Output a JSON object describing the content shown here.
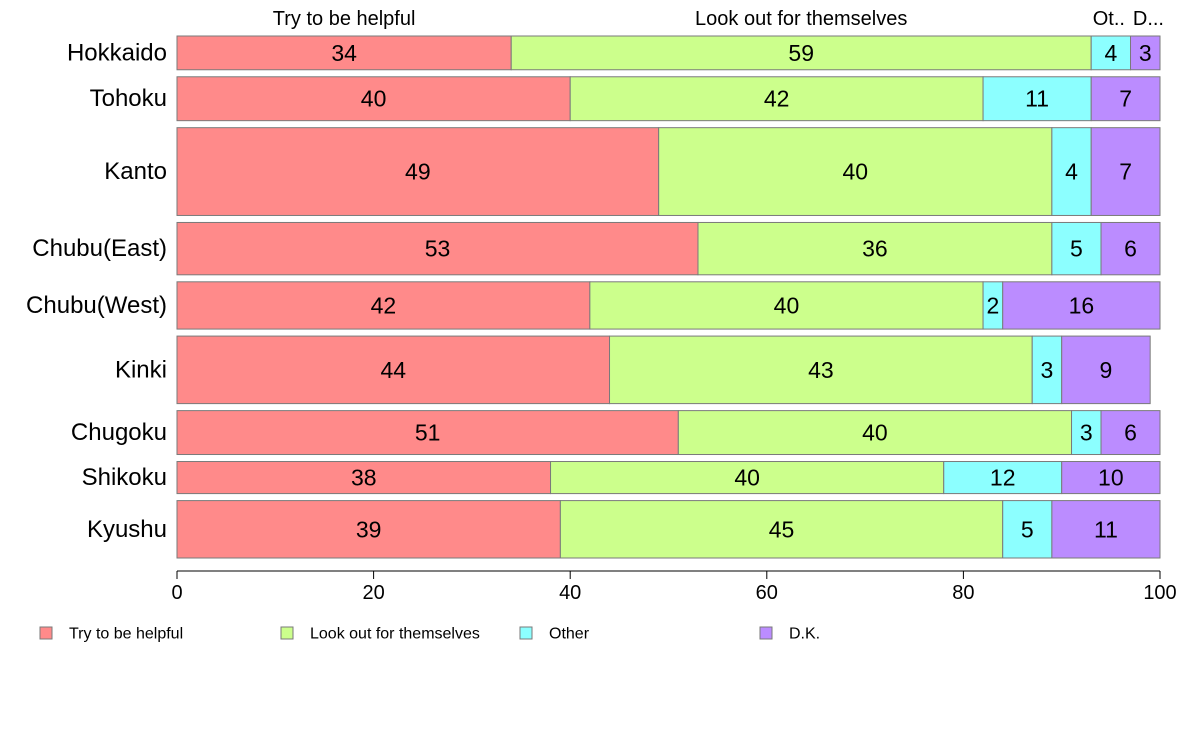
{
  "chart_data": {
    "type": "bar",
    "orientation": "horizontal",
    "stacked": true,
    "categories": [
      "Hokkaido",
      "Tohoku",
      "Kanto",
      "Chubu(East)",
      "Chubu(West)",
      "Kinki",
      "Chugoku",
      "Shikoku",
      "Kyushu"
    ],
    "bar_weights": [
      1,
      1.3,
      2.6,
      1.55,
      1.4,
      2.0,
      1.3,
      0.95,
      1.7
    ],
    "series": [
      {
        "name": "Try to be helpful",
        "color": "#FF8A8A",
        "values": [
          34,
          40,
          49,
          53,
          42,
          44,
          51,
          38,
          39
        ]
      },
      {
        "name": "Look out for themselves",
        "color": "#CCFF8C",
        "values": [
          59,
          42,
          40,
          36,
          40,
          43,
          40,
          40,
          45
        ]
      },
      {
        "name": "Other",
        "color": "#8CFFFF",
        "values": [
          4,
          11,
          4,
          5,
          2,
          3,
          3,
          12,
          5
        ]
      },
      {
        "name": "D.K.",
        "color": "#BB8CFF",
        "values": [
          3,
          7,
          7,
          6,
          16,
          9,
          6,
          10,
          11
        ]
      }
    ],
    "top_labels": [
      "Try to be helpful",
      "Look out for themselves",
      "Ot..",
      "D..."
    ],
    "xlim": [
      0,
      100
    ],
    "xticks": [
      "0",
      "20",
      "40",
      "60",
      "80",
      "100"
    ],
    "grid": false,
    "legend_position": "bottom"
  }
}
